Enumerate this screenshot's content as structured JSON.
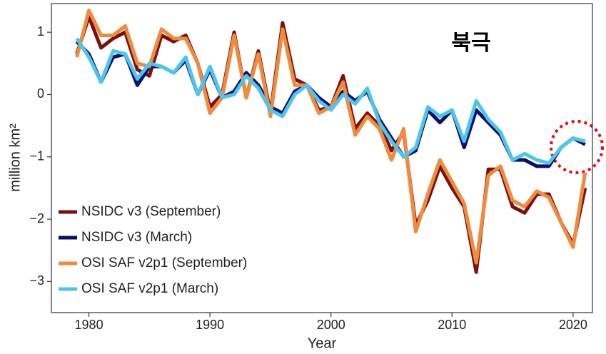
{
  "chart_data": {
    "type": "line",
    "annotation": "북극",
    "x_label": "Year",
    "y_label": "million km²",
    "x": [
      1979,
      1980,
      1981,
      1982,
      1983,
      1984,
      1985,
      1986,
      1987,
      1988,
      1989,
      1990,
      1991,
      1992,
      1993,
      1994,
      1995,
      1996,
      1997,
      1998,
      1999,
      2000,
      2001,
      2002,
      2003,
      2004,
      2005,
      2006,
      2007,
      2008,
      2009,
      2010,
      2011,
      2012,
      2013,
      2014,
      2015,
      2016,
      2017,
      2018,
      2019,
      2020,
      2021
    ],
    "series": [
      {
        "name": "NSIDC v3 (September)",
        "color": "#7a1010",
        "values": [
          0.65,
          1.25,
          0.75,
          0.9,
          1.0,
          0.4,
          0.3,
          0.95,
          0.85,
          0.95,
          0.5,
          -0.2,
          0.0,
          1.0,
          -0.05,
          0.7,
          -0.3,
          1.15,
          0.25,
          0.15,
          -0.25,
          -0.2,
          0.3,
          -0.55,
          -0.3,
          -0.5,
          -0.9,
          -0.6,
          -2.1,
          -1.7,
          -1.15,
          -1.5,
          -1.8,
          -2.85,
          -1.2,
          -1.2,
          -1.8,
          -1.9,
          -1.6,
          -1.6,
          -2.05,
          -2.4,
          -1.5
        ]
      },
      {
        "name": "NSIDC v3 (March)",
        "color": "#0a0f6e",
        "values": [
          0.85,
          0.65,
          0.2,
          0.6,
          0.65,
          0.15,
          0.45,
          0.45,
          0.35,
          0.55,
          0.0,
          0.4,
          -0.05,
          0.05,
          0.35,
          0.15,
          -0.2,
          -0.3,
          0.05,
          0.15,
          -0.05,
          -0.2,
          0.05,
          -0.1,
          0.05,
          -0.4,
          -0.7,
          -1.0,
          -0.9,
          -0.25,
          -0.45,
          -0.25,
          -0.85,
          -0.25,
          -0.45,
          -0.65,
          -1.05,
          -1.05,
          -1.15,
          -1.15,
          -0.85,
          -0.7,
          -0.8
        ]
      },
      {
        "name": "OSI SAF v2p1 (September)",
        "color": "#f08a3c",
        "values": [
          0.6,
          1.35,
          0.95,
          0.95,
          1.1,
          0.5,
          0.45,
          1.05,
          0.9,
          0.9,
          0.5,
          -0.3,
          -0.05,
          0.95,
          -0.05,
          0.65,
          -0.35,
          1.05,
          0.15,
          0.15,
          -0.3,
          -0.2,
          0.2,
          -0.65,
          -0.35,
          -0.55,
          -1.05,
          -0.55,
          -2.2,
          -1.6,
          -1.05,
          -1.4,
          -1.75,
          -2.7,
          -1.3,
          -1.15,
          -1.7,
          -1.8,
          -1.55,
          -1.65,
          -2.05,
          -2.45,
          -1.25
        ]
      },
      {
        "name": "OSI SAF v2p1 (March)",
        "color": "#4cc6ee",
        "values": [
          0.9,
          0.6,
          0.2,
          0.7,
          0.65,
          0.25,
          0.5,
          0.45,
          0.35,
          0.6,
          0.0,
          0.45,
          -0.05,
          0.0,
          0.3,
          0.1,
          -0.25,
          -0.35,
          0.0,
          0.15,
          -0.1,
          -0.25,
          0.0,
          -0.15,
          0.1,
          -0.45,
          -0.75,
          -1.0,
          -0.85,
          -0.2,
          -0.35,
          -0.25,
          -0.75,
          -0.1,
          -0.4,
          -0.6,
          -1.05,
          -0.95,
          -1.05,
          -1.1,
          -0.85,
          -0.7,
          -0.75
        ]
      }
    ],
    "xlim": [
      1976.9,
      2021.6
    ],
    "ylim": [
      -3.5,
      1.46
    ],
    "xticks": [
      1980,
      1990,
      2000,
      2010,
      2020
    ],
    "yticks": [
      1,
      0,
      {
        "value": -1,
        "label": "−1"
      },
      {
        "value": -2,
        "label": "−2"
      },
      {
        "value": -3,
        "label": "−3"
      }
    ],
    "legend": "lower left",
    "grid": false
  }
}
